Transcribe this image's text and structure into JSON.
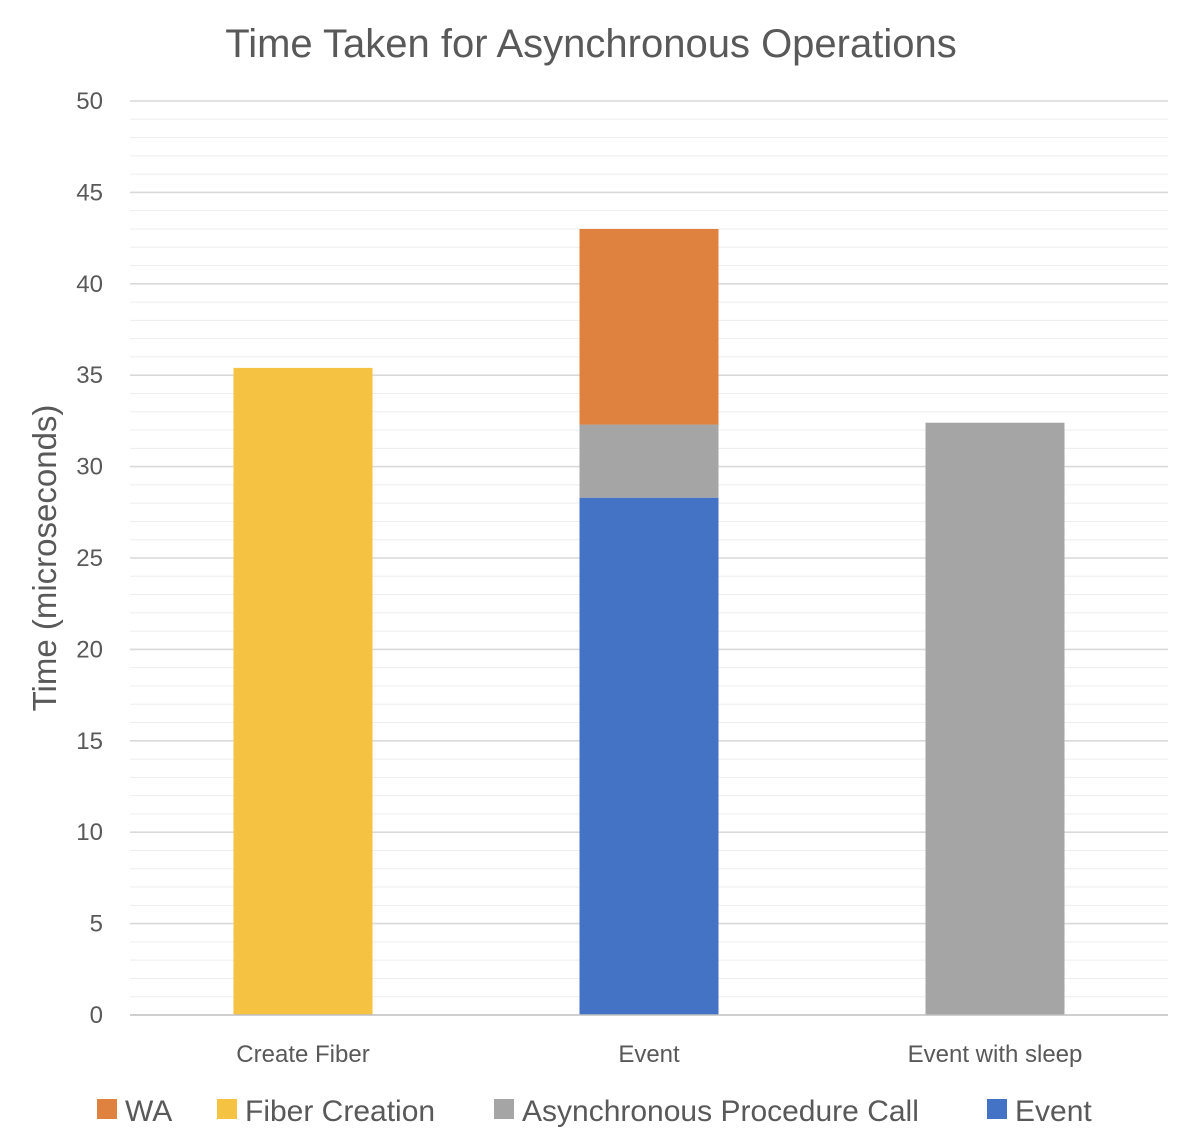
{
  "chart_data": {
    "type": "bar",
    "stacked": true,
    "title": "Time Taken for Asynchronous Operations",
    "xlabel": "",
    "ylabel": "Time (microseconds)",
    "ylim": [
      0,
      50
    ],
    "y_major_ticks": [
      0,
      5,
      10,
      15,
      20,
      25,
      30,
      35,
      40,
      45,
      50
    ],
    "y_minor_step": 1,
    "grid": true,
    "legend_position": "bottom",
    "categories": [
      "Create Fiber",
      "Event",
      "Event with sleep"
    ],
    "series": [
      {
        "name": "Event",
        "color": "#4472C4",
        "values": [
          0,
          28.3,
          0
        ]
      },
      {
        "name": "Asynchronous Procedure Call",
        "color": "#A5A5A5",
        "values": [
          0,
          4.0,
          32.4
        ]
      },
      {
        "name": "Fiber Creation",
        "color": "#F5C242",
        "values": [
          35.4,
          0,
          0
        ]
      },
      {
        "name": "WA",
        "color": "#E0823F",
        "values": [
          0,
          10.7,
          0
        ]
      }
    ],
    "legend_order": [
      "WA",
      "Fiber Creation",
      "Asynchronous Procedure Call",
      "Event"
    ],
    "colors": {
      "grid_major": "#D9D9D9",
      "grid_minor": "#EDEDED",
      "text": "#595959"
    }
  }
}
